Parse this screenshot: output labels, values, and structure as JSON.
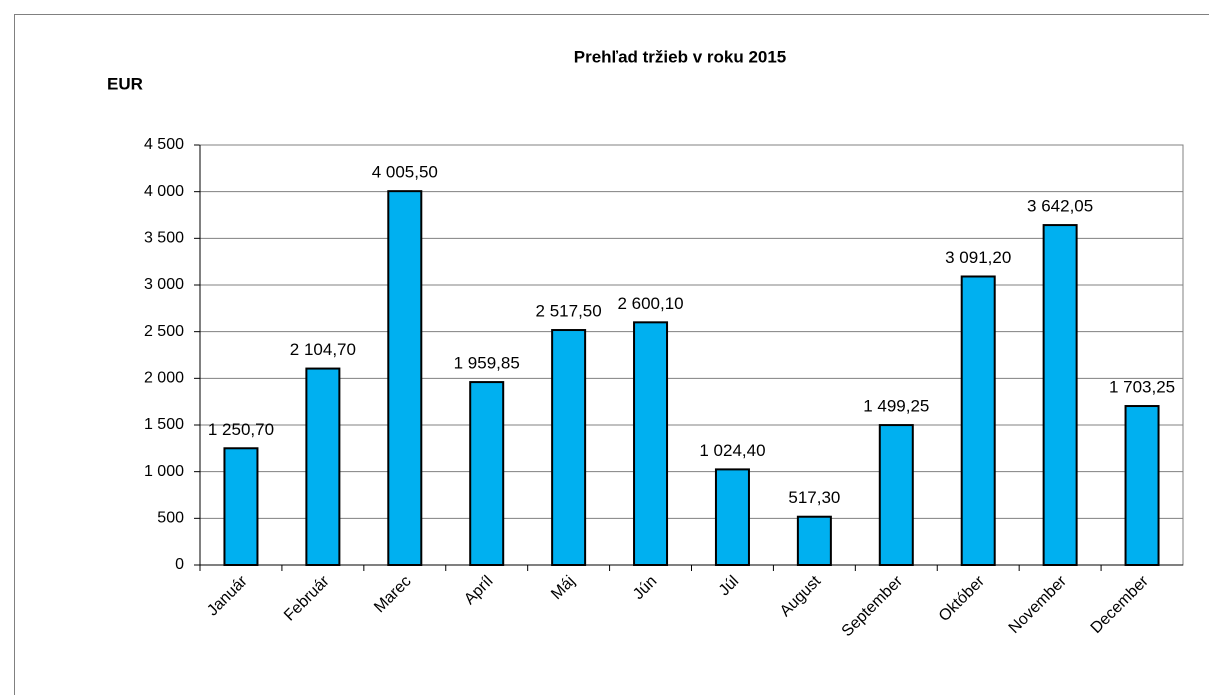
{
  "chart_data": {
    "type": "bar",
    "title": "Prehľad tržieb v roku 2015",
    "y_label": "EUR",
    "categories": [
      "Január",
      "Február",
      "Marec",
      "Apríl",
      "Máj",
      "Jún",
      "Júl",
      "August",
      "September",
      "Október",
      "November",
      "December"
    ],
    "values": [
      1250.7,
      2104.7,
      4005.5,
      1959.85,
      2517.5,
      2600.1,
      1024.4,
      517.3,
      1499.25,
      3091.2,
      3642.05,
      1703.25
    ],
    "value_labels": [
      "1 250,70",
      "2 104,70",
      "4 005,50",
      "1 959,85",
      "2 517,50",
      "2 600,10",
      "1 024,40",
      "517,30",
      "1 499,25",
      "3 091,20",
      "3 642,05",
      "1 703,25"
    ],
    "color": "#00b0f0",
    "ylim": [
      0,
      4500
    ],
    "yticks": [
      0,
      500,
      {
        "value": 1000,
        "label": "1 000"
      },
      {
        "value": 1500,
        "label": "1 500"
      },
      {
        "value": 2000,
        "label": "2 000"
      },
      {
        "value": 2500,
        "label": "2 500"
      },
      {
        "value": 3000,
        "label": "3 000"
      },
      {
        "value": 3500,
        "label": "3 500"
      },
      {
        "value": 4000,
        "label": "4 000"
      },
      {
        "value": 4500,
        "label": "4 500"
      }
    ],
    "grid": true
  }
}
